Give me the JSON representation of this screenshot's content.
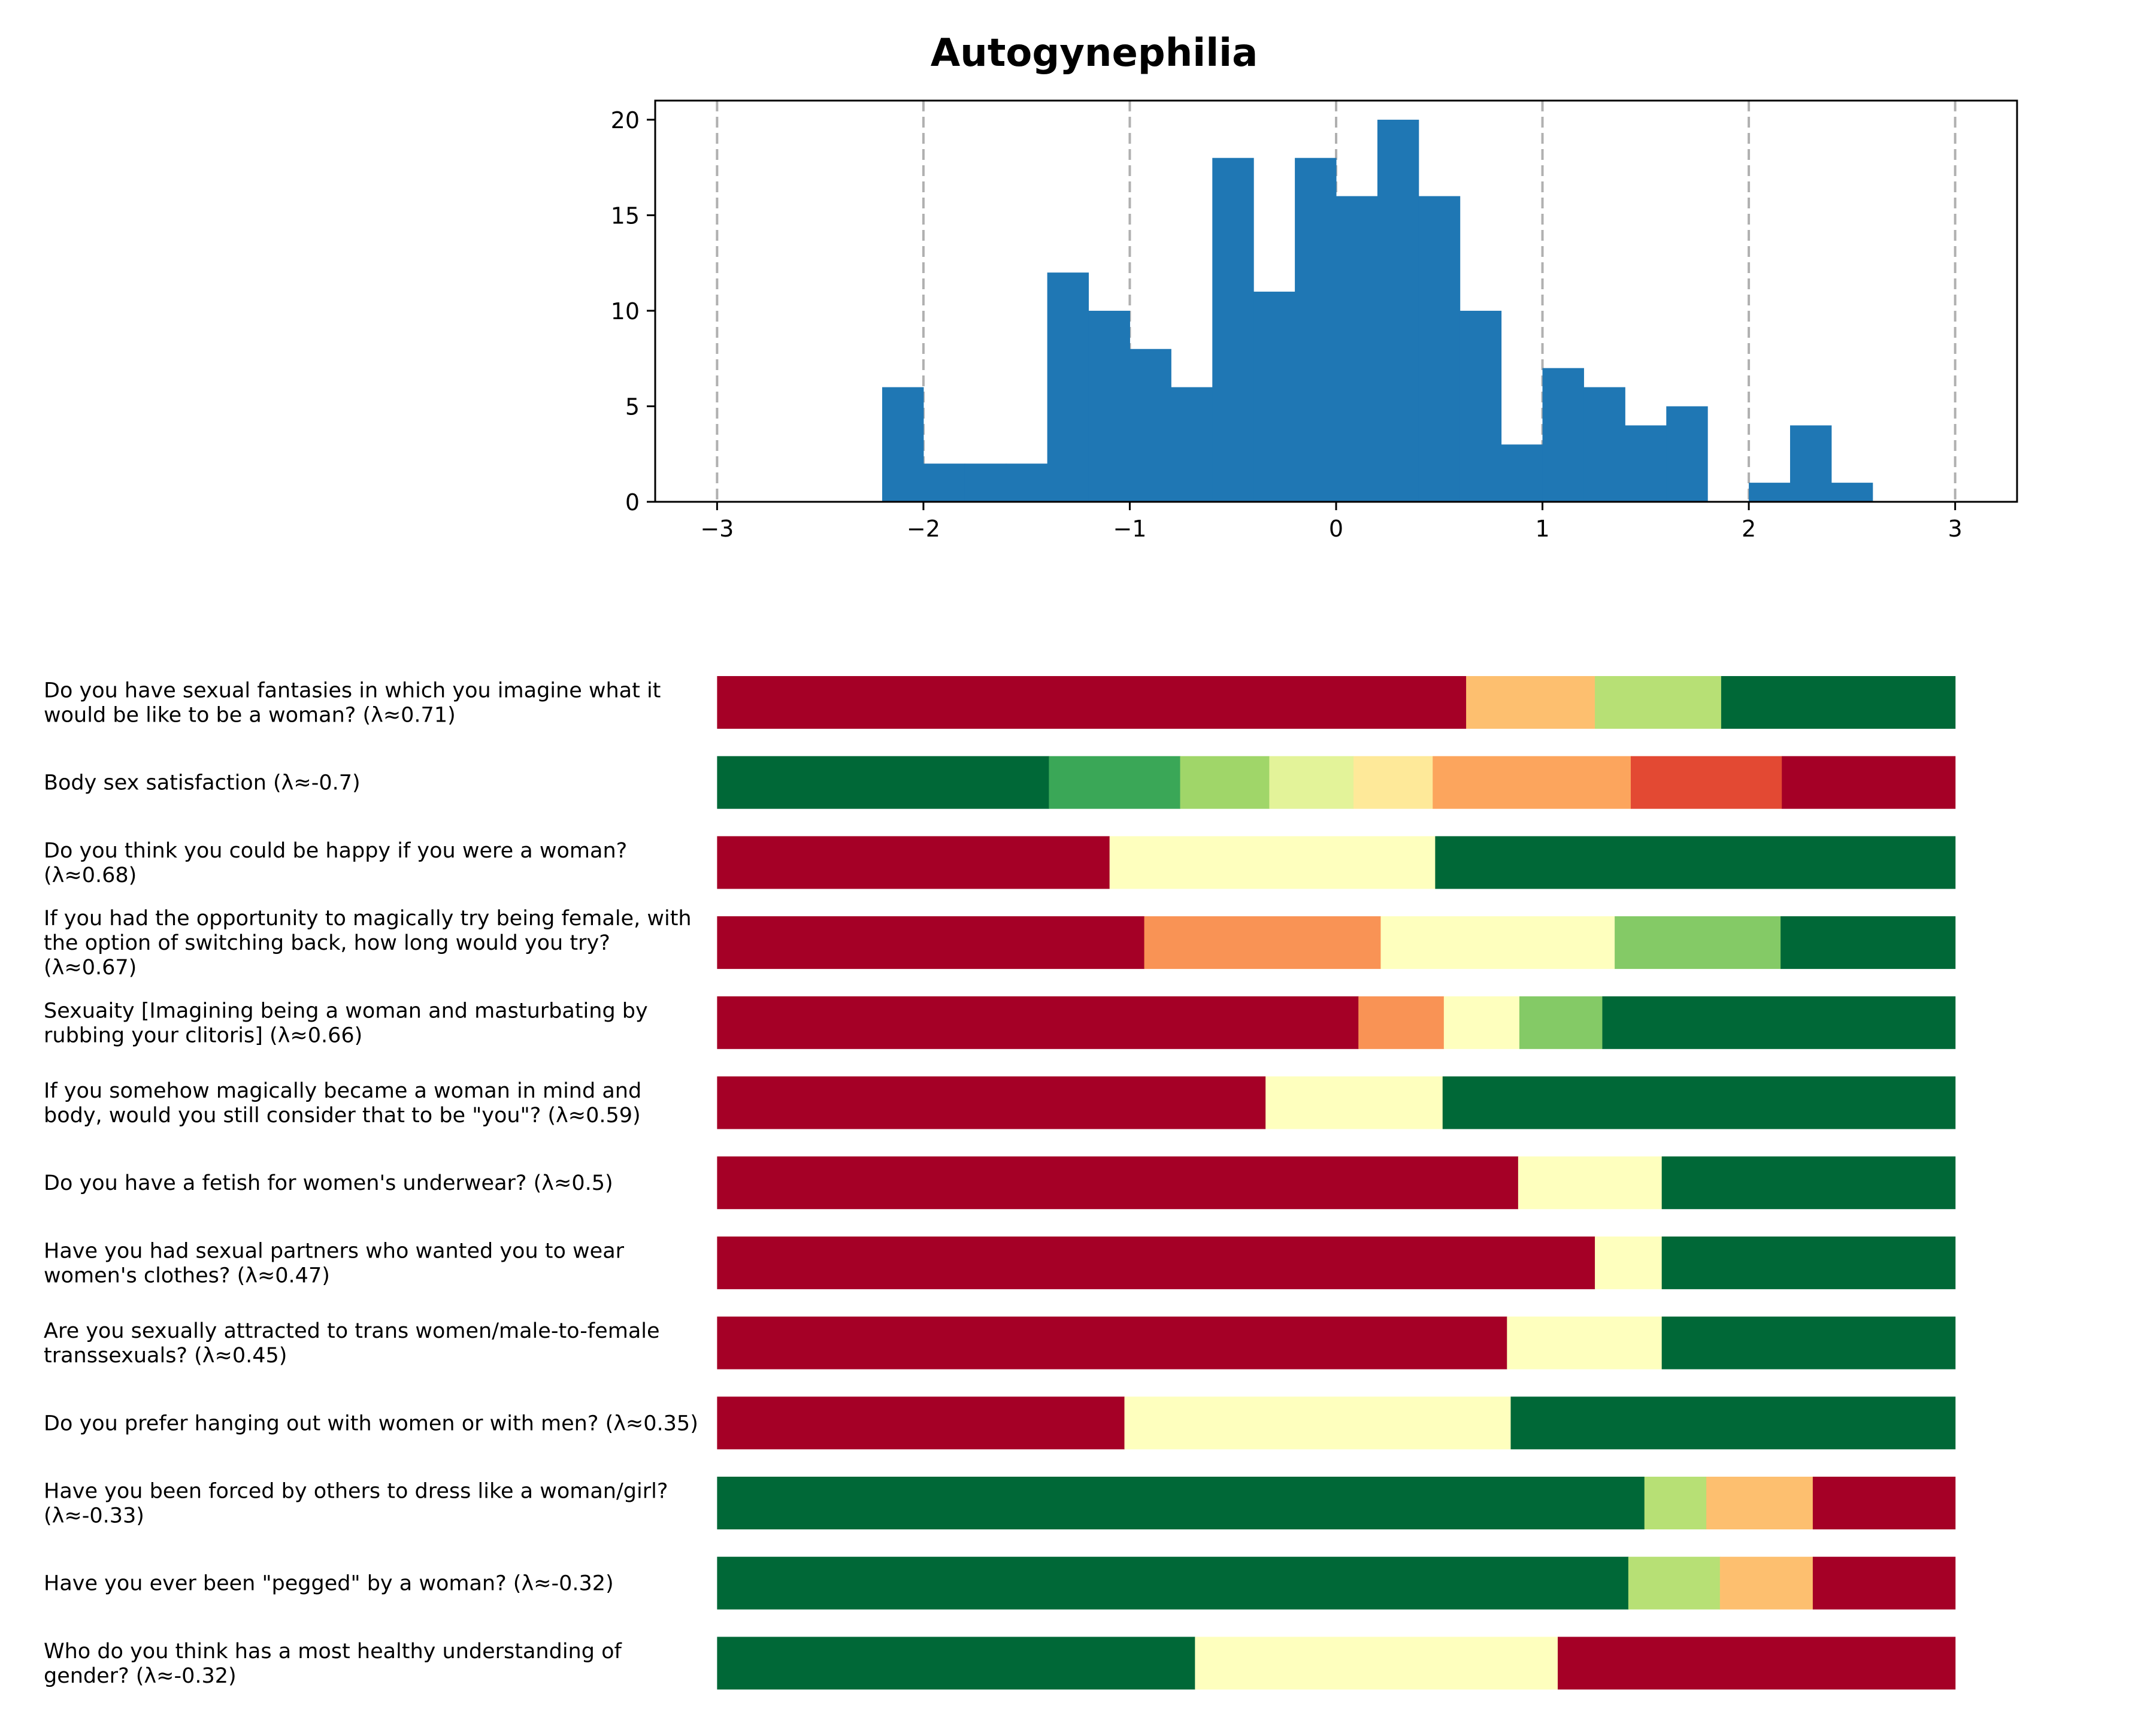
{
  "chart_data": [
    {
      "type": "bar",
      "subtype": "histogram",
      "title": "Autogynephilia",
      "xlabel": "",
      "ylabel": "",
      "xlim": [
        -3.3,
        3.3
      ],
      "ylim": [
        0,
        21
      ],
      "xticks": [
        -3,
        -2,
        -1,
        0,
        1,
        2,
        3
      ],
      "xtick_labels": [
        "−3",
        "−2",
        "−1",
        "0",
        "1",
        "2",
        "3"
      ],
      "yticks": [
        0,
        5,
        10,
        15,
        20
      ],
      "ytick_labels": [
        "0",
        "5",
        "10",
        "15",
        "20"
      ],
      "reference_lines": [
        -3,
        -2,
        -1,
        0,
        1,
        2,
        3
      ],
      "grid": false,
      "bar_color": "#1f77b4",
      "bins": [
        {
          "x0": -2.2,
          "x1": -2.0,
          "count": 6
        },
        {
          "x0": -2.0,
          "x1": -1.8,
          "count": 2
        },
        {
          "x0": -1.8,
          "x1": -1.6,
          "count": 2
        },
        {
          "x0": -1.6,
          "x1": -1.4,
          "count": 2
        },
        {
          "x0": -1.4,
          "x1": -1.2,
          "count": 12
        },
        {
          "x0": -1.2,
          "x1": -1.0,
          "count": 10
        },
        {
          "x0": -1.0,
          "x1": -0.8,
          "count": 8
        },
        {
          "x0": -0.8,
          "x1": -0.6,
          "count": 6
        },
        {
          "x0": -0.6,
          "x1": -0.4,
          "count": 18
        },
        {
          "x0": -0.4,
          "x1": -0.2,
          "count": 11
        },
        {
          "x0": -0.2,
          "x1": 0.0,
          "count": 18
        },
        {
          "x0": 0.0,
          "x1": 0.2,
          "count": 16
        },
        {
          "x0": 0.2,
          "x1": 0.4,
          "count": 20
        },
        {
          "x0": 0.4,
          "x1": 0.6,
          "count": 16
        },
        {
          "x0": 0.6,
          "x1": 0.8,
          "count": 10
        },
        {
          "x0": 0.8,
          "x1": 1.0,
          "count": 3
        },
        {
          "x0": 1.0,
          "x1": 1.2,
          "count": 7
        },
        {
          "x0": 1.2,
          "x1": 1.4,
          "count": 6
        },
        {
          "x0": 1.4,
          "x1": 1.6,
          "count": 4
        },
        {
          "x0": 1.6,
          "x1": 1.8,
          "count": 5
        },
        {
          "x0": 2.0,
          "x1": 2.2,
          "count": 1
        },
        {
          "x0": 2.2,
          "x1": 2.4,
          "count": 4
        },
        {
          "x0": 2.4,
          "x1": 2.6,
          "count": 1
        }
      ]
    },
    {
      "type": "bar",
      "subtype": "stacked-horizontal-100",
      "title": "",
      "xlim": [
        -3,
        3
      ],
      "axes_visible": false,
      "rows": [
        {
          "label": "Do you have sexual fantasies in which you imagine what it would be like to be a woman? (λ≈0.71)",
          "segments": [
            {
              "value": 60.5,
              "color": "#a50026"
            },
            {
              "value": 10.4,
              "color": "#fdbf6f"
            },
            {
              "value": 10.2,
              "color": "#b7e075"
            },
            {
              "value": 18.9,
              "color": "#006837"
            }
          ]
        },
        {
          "label": "Body sex satisfaction (λ≈-0.7)",
          "segments": [
            {
              "value": 26.8,
              "color": "#006837"
            },
            {
              "value": 10.6,
              "color": "#3aa757"
            },
            {
              "value": 7.2,
              "color": "#a0d669"
            },
            {
              "value": 6.8,
              "color": "#e3f399"
            },
            {
              "value": 6.4,
              "color": "#fee999"
            },
            {
              "value": 16.0,
              "color": "#fca55d"
            },
            {
              "value": 12.2,
              "color": "#e34933"
            },
            {
              "value": 14.0,
              "color": "#a50026"
            }
          ]
        },
        {
          "label": "Do you think you could be happy if you were a woman? (λ≈0.68)",
          "segments": [
            {
              "value": 31.7,
              "color": "#a50026"
            },
            {
              "value": 26.3,
              "color": "#feffbe"
            },
            {
              "value": 42.0,
              "color": "#006837"
            }
          ]
        },
        {
          "label": "If you had the opportunity to magically try being female, with the option of switching back, how long would you try? (λ≈0.67)",
          "segments": [
            {
              "value": 34.5,
              "color": "#a50026"
            },
            {
              "value": 19.1,
              "color": "#f99355"
            },
            {
              "value": 18.9,
              "color": "#feffbe"
            },
            {
              "value": 13.4,
              "color": "#84ca66"
            },
            {
              "value": 14.1,
              "color": "#006837"
            }
          ]
        },
        {
          "label": "Sexuaity [Imagining being a woman and masturbating by rubbing your clitoris] (λ≈0.66)",
          "segments": [
            {
              "value": 51.8,
              "color": "#a50026"
            },
            {
              "value": 6.9,
              "color": "#f99355"
            },
            {
              "value": 6.1,
              "color": "#feffbe"
            },
            {
              "value": 6.7,
              "color": "#84ca66"
            },
            {
              "value": 28.5,
              "color": "#006837"
            }
          ]
        },
        {
          "label": "If you somehow magically became a woman in mind and body, would you still consider that to be \"you\"? (λ≈0.59)",
          "segments": [
            {
              "value": 44.3,
              "color": "#a50026"
            },
            {
              "value": 14.3,
              "color": "#feffbe"
            },
            {
              "value": 41.4,
              "color": "#006837"
            }
          ]
        },
        {
          "label": "Do you have a fetish for women's underwear? (λ≈0.5)",
          "segments": [
            {
              "value": 64.7,
              "color": "#a50026"
            },
            {
              "value": 11.6,
              "color": "#feffbe"
            },
            {
              "value": 23.7,
              "color": "#006837"
            }
          ]
        },
        {
          "label": "Have you had sexual partners who wanted you to wear women's clothes? (λ≈0.47)",
          "segments": [
            {
              "value": 70.9,
              "color": "#a50026"
            },
            {
              "value": 5.4,
              "color": "#feffbe"
            },
            {
              "value": 23.7,
              "color": "#006837"
            }
          ]
        },
        {
          "label": "Are you sexually attracted to trans women/male-to-female transsexuals? (λ≈0.45)",
          "segments": [
            {
              "value": 63.8,
              "color": "#a50026"
            },
            {
              "value": 12.5,
              "color": "#feffbe"
            },
            {
              "value": 23.7,
              "color": "#006837"
            }
          ]
        },
        {
          "label": "Do you prefer hanging out with women or with men? (λ≈0.35)",
          "segments": [
            {
              "value": 32.9,
              "color": "#a50026"
            },
            {
              "value": 31.2,
              "color": "#feffbe"
            },
            {
              "value": 35.9,
              "color": "#006837"
            }
          ]
        },
        {
          "label": "Have you been forced by others to dress like a woman/girl? (λ≈-0.33)",
          "segments": [
            {
              "value": 74.9,
              "color": "#006837"
            },
            {
              "value": 5.0,
              "color": "#b7e075"
            },
            {
              "value": 8.6,
              "color": "#fdbf6f"
            },
            {
              "value": 11.5,
              "color": "#a50026"
            }
          ]
        },
        {
          "label": "Have you ever been \"pegged\" by a woman? (λ≈-0.32)",
          "segments": [
            {
              "value": 73.6,
              "color": "#006837"
            },
            {
              "value": 7.4,
              "color": "#b7e075"
            },
            {
              "value": 7.5,
              "color": "#fdbf6f"
            },
            {
              "value": 11.5,
              "color": "#a50026"
            }
          ]
        },
        {
          "label": "Who do you think has a most healthy understanding of gender? (λ≈-0.32)",
          "segments": [
            {
              "value": 38.6,
              "color": "#006837"
            },
            {
              "value": 29.3,
              "color": "#feffbe"
            },
            {
              "value": 32.1,
              "color": "#a50026"
            }
          ]
        }
      ]
    }
  ]
}
